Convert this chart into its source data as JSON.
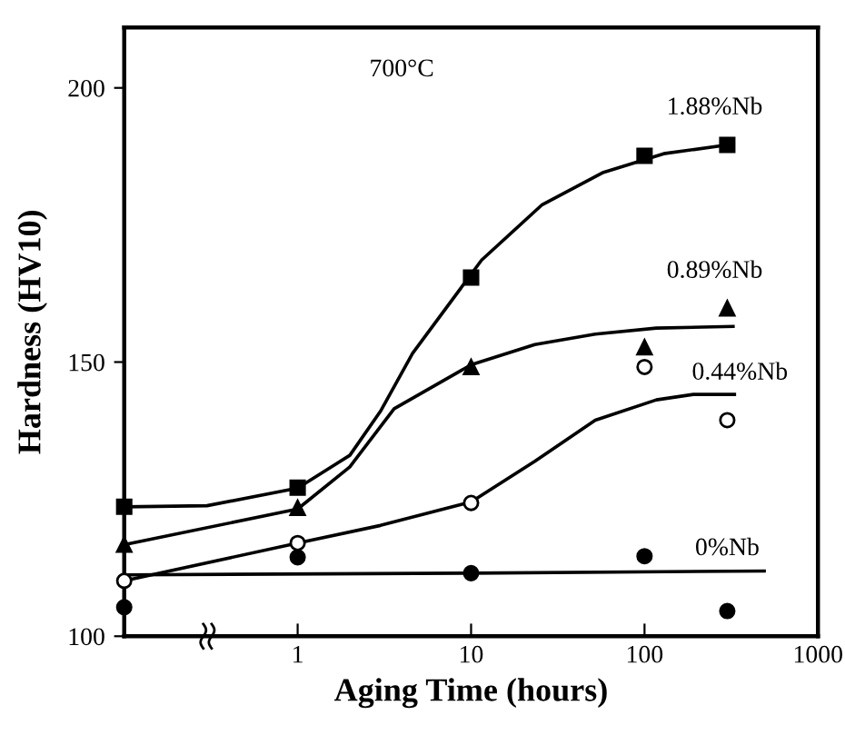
{
  "chart_data": {
    "type": "scatter",
    "xlabel": "Aging Time (hours)",
    "ylabel": "Hardness (HV10)",
    "log": "x",
    "xlim": [
      0.1,
      1000
    ],
    "xticks": [
      1,
      10,
      100,
      1000
    ],
    "ylim": [
      100,
      211
    ],
    "yticks": [
      100,
      150,
      200
    ],
    "grid": false,
    "legend": false,
    "annotations": [
      "700°C"
    ],
    "series": [
      {
        "name": "1.88%Nb",
        "marker": "square",
        "color": "#000000",
        "x": [
          0.1,
          1,
          10,
          100,
          300
        ],
        "values": [
          123.6,
          127.1,
          165.4,
          187.6,
          189.6
        ]
      },
      {
        "name": "0.89%Nb",
        "marker": "triangle",
        "color": "#000000",
        "x": [
          0.1,
          1,
          10,
          100,
          300
        ],
        "values": [
          116.7,
          123.4,
          149.1,
          152.7,
          159.8
        ]
      },
      {
        "name": "0.44%Nb",
        "marker": "circle",
        "color": "#ffffff",
        "x": [
          0.1,
          1,
          10,
          100,
          300
        ],
        "values": [
          110.1,
          117.0,
          124.3,
          149.1,
          139.4
        ]
      },
      {
        "name": "0%Nb",
        "marker": "circle",
        "color": "#000000",
        "x": [
          0.1,
          1,
          10,
          100,
          300
        ],
        "values": [
          105.3,
          114.4,
          111.5,
          114.6,
          104.6
        ]
      },
      {
        "type": "line",
        "marker": "none",
        "color": "#000000",
        "x": [
          0.1,
          0.3,
          1,
          2,
          3,
          4.6,
          11.5,
          25.7,
          58,
          129,
          300
        ],
        "values": [
          123.6,
          123.8,
          127.0,
          133,
          141,
          151.6,
          168.6,
          178.7,
          184.6,
          188,
          189.6
        ]
      },
      {
        "type": "line",
        "marker": "none",
        "color": "#000000",
        "x": [
          0.1,
          1,
          2,
          3.6,
          10,
          23.3,
          52,
          117,
          324
        ],
        "values": [
          116.7,
          123.2,
          130.9,
          141.5,
          149.5,
          153.2,
          155.1,
          156.2,
          156.5
        ]
      },
      {
        "type": "line",
        "marker": "none",
        "color": "#000000",
        "x": [
          0.1,
          1,
          3,
          10,
          23.3,
          52,
          117,
          191,
          330
        ],
        "values": [
          110.1,
          117.0,
          120.2,
          124.5,
          131.9,
          139.4,
          143.1,
          144.1,
          144.1
        ]
      },
      {
        "type": "line",
        "marker": "none",
        "color": "#000000",
        "x": [
          0.1,
          10,
          490
        ],
        "values": [
          111.2,
          111.5,
          111.9
        ]
      }
    ]
  }
}
